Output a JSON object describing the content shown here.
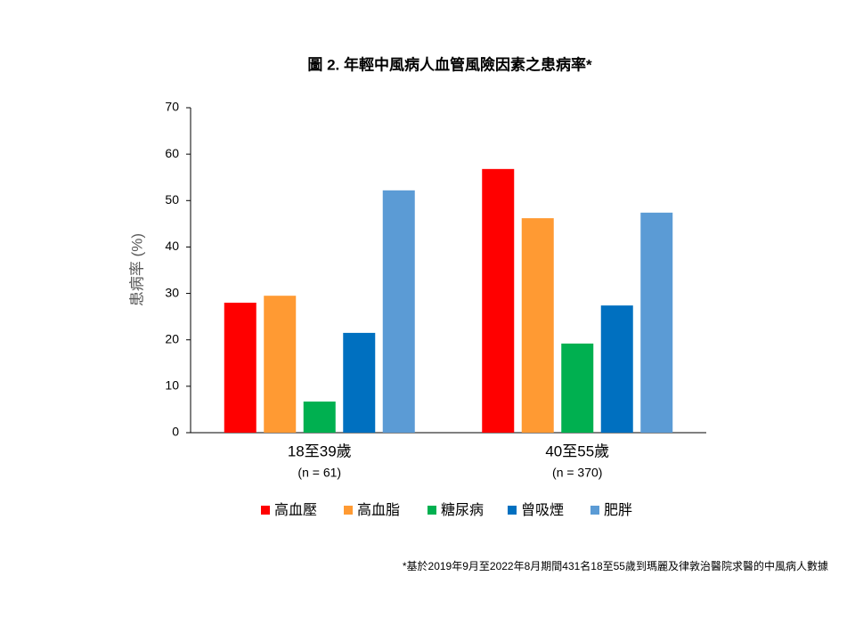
{
  "chart_data": {
    "type": "bar",
    "title": "圖 2. 年輕中風病人血管風險因素之患病率*",
    "y_label": "患病率 (%)",
    "categories": [
      "18至39歲",
      "40至55歲"
    ],
    "category_notes": [
      "(n = 61)",
      "(n = 370)"
    ],
    "series": [
      {
        "name": "高血壓",
        "color": "#ff0000",
        "values": [
          28.0,
          56.8
        ]
      },
      {
        "name": "高血脂",
        "color": "#ff9a33",
        "values": [
          29.5,
          46.2
        ]
      },
      {
        "name": "糖尿病",
        "color": "#00b050",
        "values": [
          6.7,
          19.2
        ]
      },
      {
        "name": "曾吸煙",
        "color": "#0070c0",
        "values": [
          21.5,
          27.4
        ]
      },
      {
        "name": "肥胖",
        "color": "#5b9bd5",
        "values": [
          52.2,
          47.4
        ]
      }
    ],
    "ylim": [
      0,
      70
    ],
    "yticks": [
      0,
      10,
      20,
      30,
      40,
      50,
      60,
      70
    ],
    "grid": false,
    "footnote": "*基於2019年9月至2022年8月期間431名18至55歲到瑪麗及律敦治醫院求醫的中風病人數據"
  }
}
